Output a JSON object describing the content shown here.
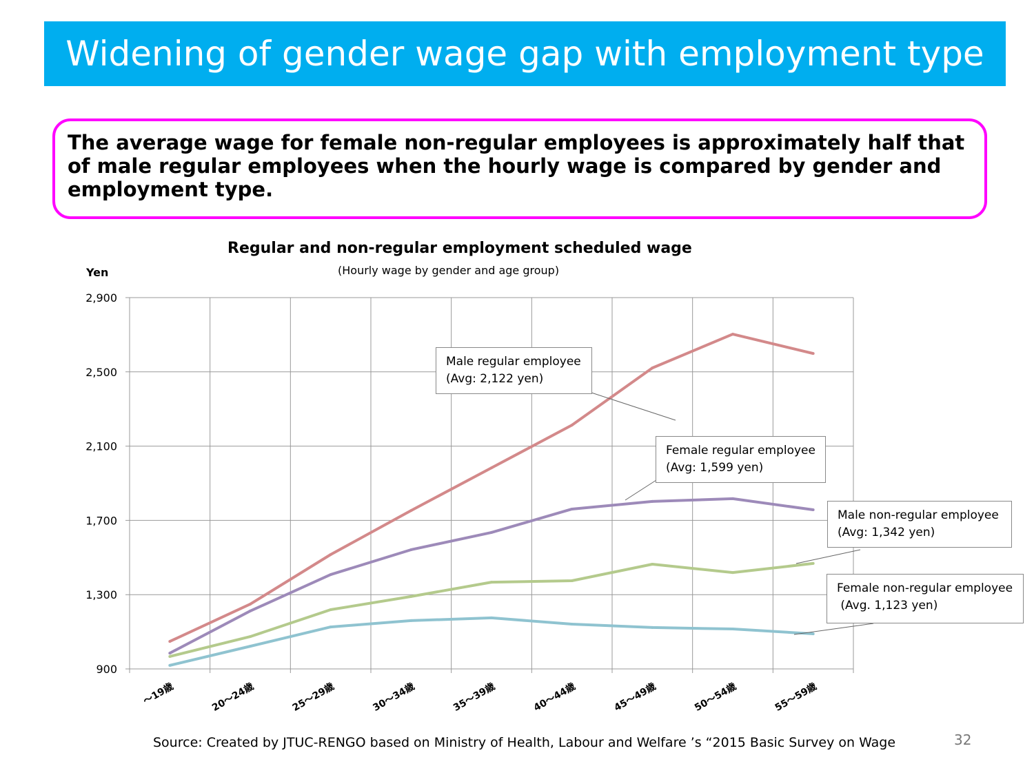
{
  "title": "Widening of gender wage gap with employment type",
  "callout": "The average wage for female non-regular employees is approximately half that of male regular employees when  the hourly wage is compared by gender and employment type.",
  "source": "Source:  Created by JTUC-RENGO based on Ministry of Health, Labour and Welfare ’s “2015 Basic Survey on Wage",
  "page_number": "32",
  "chart_data": {
    "type": "line",
    "title": "Regular and non-regular employment scheduled wage",
    "subtitle": "(Hourly wage by gender and age group)",
    "ylabel": "Yen",
    "xlabel": "",
    "ylim": [
      900,
      2900
    ],
    "yticks": [
      900,
      1300,
      1700,
      2100,
      2500,
      2900
    ],
    "ytick_labels": [
      "900",
      "1,300",
      "1,700",
      "2,100",
      "2,500",
      "2,900"
    ],
    "grid": true,
    "categories": [
      "～19歳",
      "20～24歳",
      "25～29歳",
      "30～34歳",
      "35～39歳",
      "40～44歳",
      "45～49歳",
      "50～54歳",
      "55～59歳"
    ],
    "series": [
      {
        "name": "Male regular employee",
        "avg_label": "(Avg: 2,122 yen)",
        "color": "#d3898a",
        "values": [
          1048,
          1249,
          1516,
          1753,
          1983,
          2213,
          2521,
          2703,
          2599
        ]
      },
      {
        "name": "Female regular employee",
        "avg_label": "(Avg: 1,599 yen)",
        "color": "#9d8ab9",
        "values": [
          985,
          1212,
          1408,
          1542,
          1635,
          1761,
          1802,
          1817,
          1757
        ]
      },
      {
        "name": "Male non-regular employee",
        "avg_label": "(Avg: 1,342 yen)",
        "color": "#b4ca8c",
        "values": [
          967,
          1074,
          1219,
          1290,
          1367,
          1375,
          1464,
          1419,
          1468
        ]
      },
      {
        "name": "Female non-regular employee",
        "avg_label": " (Avg. 1,123 yen)",
        "color": "#8fc3d0",
        "values": [
          919,
          1022,
          1126,
          1160,
          1175,
          1141,
          1123,
          1115,
          1089
        ]
      }
    ]
  }
}
